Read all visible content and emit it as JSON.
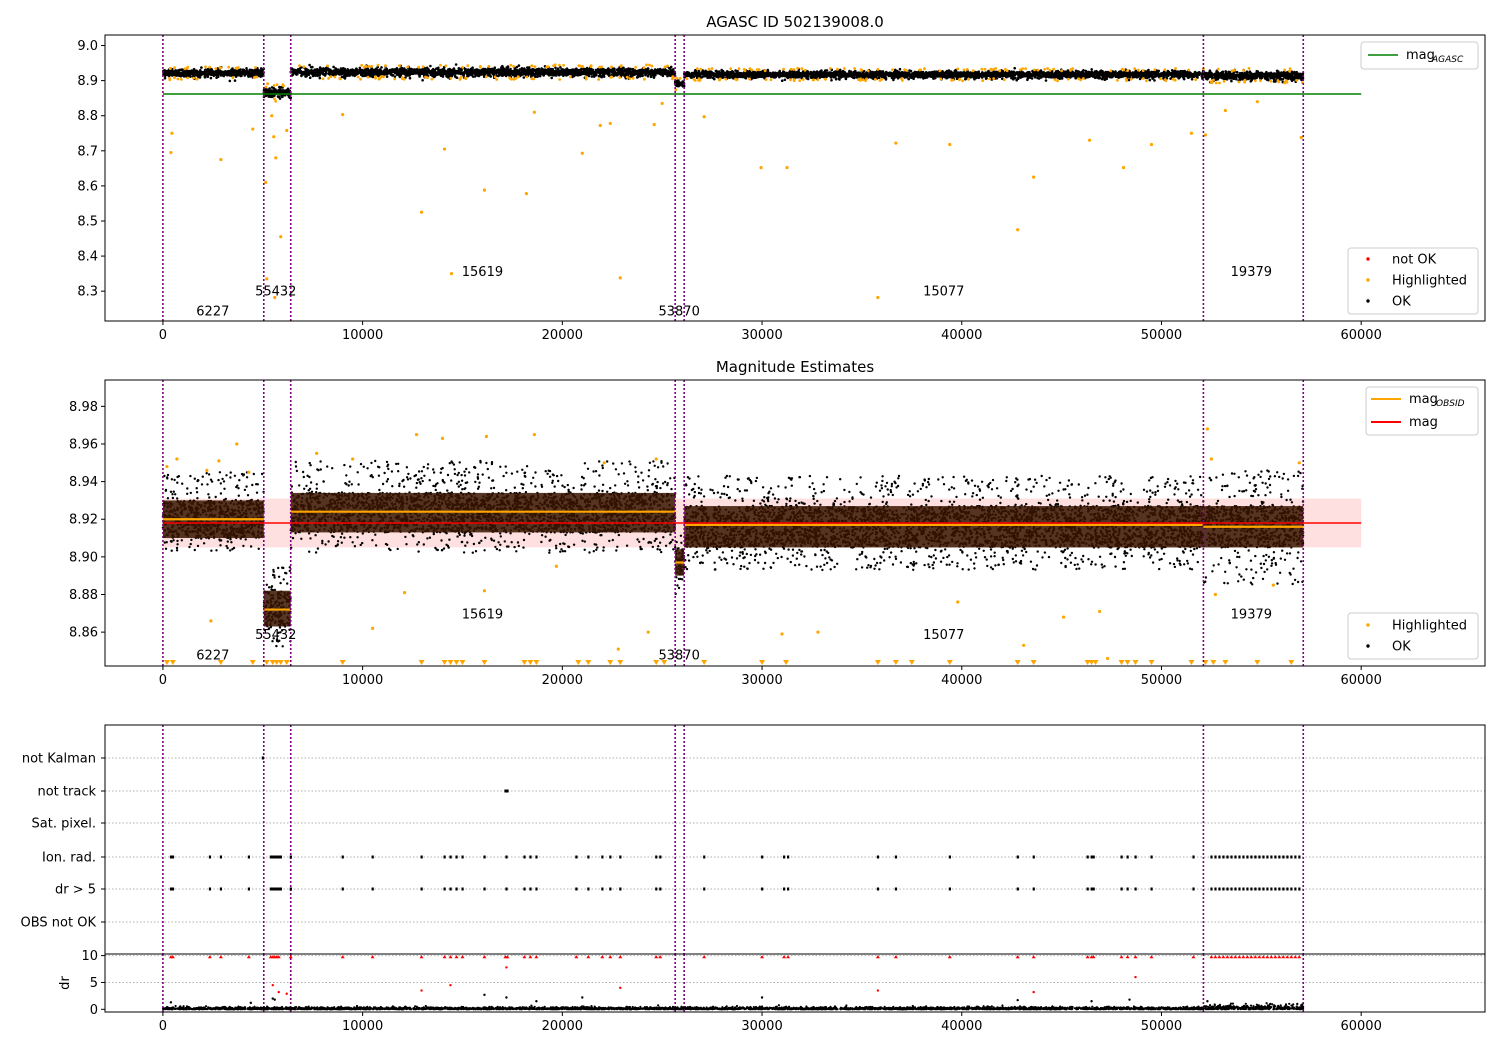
{
  "chart_data": [
    {
      "type": "scatter",
      "title": "AGASC ID 502139008.0",
      "xlim": [
        -2900,
        66200
      ],
      "ylim": [
        8.215,
        9.03
      ],
      "xticks": [
        0,
        10000,
        20000,
        30000,
        40000,
        50000,
        60000
      ],
      "xtick_labels": [
        "0",
        "10000",
        "20000",
        "30000",
        "40000",
        "50000",
        "60000"
      ],
      "yticks": [
        8.3,
        8.4,
        8.5,
        8.6,
        8.7,
        8.8,
        8.9,
        9.0
      ],
      "ytick_labels": [
        "8.3",
        "8.4",
        "8.5",
        "8.6",
        "8.7",
        "8.8",
        "8.9",
        "9.0"
      ],
      "legend_upper": [
        {
          "label": "mag",
          "sub": "AGASC",
          "color": "#008000",
          "kind": "line"
        }
      ],
      "legend_lower": [
        {
          "label": "not OK",
          "color": "#ff0000",
          "kind": "dot"
        },
        {
          "label": "Highlighted",
          "color": "#ffa500",
          "kind": "dot"
        },
        {
          "label": "OK",
          "color": "#000000",
          "kind": "dot"
        }
      ],
      "legend_placement": [
        "upper right",
        "lower right"
      ],
      "hline": {
        "y": 8.862,
        "x": [
          0,
          60000
        ],
        "color": "#008000"
      },
      "obsid_boundaries": [
        0,
        5050,
        6400,
        25650,
        26100,
        52100,
        57100
      ],
      "obsid_labels": [
        {
          "text": "6227",
          "x": 2500,
          "y": 8.245
        },
        {
          "text": "55432",
          "x": 5650,
          "y": 8.302
        },
        {
          "text": "15619",
          "x": 16000,
          "y": 8.358
        },
        {
          "text": "53870",
          "x": 25850,
          "y": 8.245
        },
        {
          "text": "15077",
          "x": 39100,
          "y": 8.302
        },
        {
          "text": "19379",
          "x": 54500,
          "y": 8.358
        }
      ],
      "bands": [
        {
          "x": [
            0,
            5050
          ],
          "center": 8.922,
          "spread": 0.013
        },
        {
          "x": [
            5050,
            6400
          ],
          "center": 8.866,
          "spread": 0.017
        },
        {
          "x": [
            6400,
            25650
          ],
          "center": 8.924,
          "spread": 0.014
        },
        {
          "x": [
            25650,
            26100
          ],
          "center": 8.892,
          "spread": 0.012
        },
        {
          "x": [
            26100,
            52100
          ],
          "center": 8.917,
          "spread": 0.012
        },
        {
          "x": [
            52100,
            57100
          ],
          "center": 8.914,
          "spread": 0.014
        }
      ],
      "highlighted_points": [
        [
          450,
          8.75
        ],
        [
          400,
          8.695
        ],
        [
          2900,
          8.675
        ],
        [
          4500,
          8.762
        ],
        [
          5150,
          8.61
        ],
        [
          5200,
          8.335
        ],
        [
          5450,
          8.8
        ],
        [
          5550,
          8.74
        ],
        [
          5650,
          8.68
        ],
        [
          5600,
          8.282
        ],
        [
          5900,
          8.455
        ],
        [
          6200,
          8.758
        ],
        [
          9000,
          8.803
        ],
        [
          12950,
          8.525
        ],
        [
          14100,
          8.705
        ],
        [
          14450,
          8.35
        ],
        [
          16100,
          8.588
        ],
        [
          18200,
          8.578
        ],
        [
          18600,
          8.81
        ],
        [
          21000,
          8.693
        ],
        [
          21900,
          8.772
        ],
        [
          22400,
          8.778
        ],
        [
          22900,
          8.338
        ],
        [
          24600,
          8.775
        ],
        [
          25000,
          8.835
        ],
        [
          27100,
          8.797
        ],
        [
          29950,
          8.652
        ],
        [
          31250,
          8.652
        ],
        [
          35800,
          8.282
        ],
        [
          36700,
          8.722
        ],
        [
          39400,
          8.718
        ],
        [
          42800,
          8.475
        ],
        [
          43600,
          8.625
        ],
        [
          46400,
          8.73
        ],
        [
          48100,
          8.652
        ],
        [
          49500,
          8.718
        ],
        [
          51500,
          8.75
        ],
        [
          52200,
          8.745
        ],
        [
          53200,
          8.815
        ],
        [
          54800,
          8.84
        ],
        [
          57000,
          8.738
        ]
      ]
    },
    {
      "type": "scatter",
      "title": "Magnitude Estimates",
      "xlim": [
        -2900,
        66200
      ],
      "ylim": [
        8.842,
        8.994
      ],
      "xticks": [
        0,
        10000,
        20000,
        30000,
        40000,
        50000,
        60000
      ],
      "xtick_labels": [
        "0",
        "10000",
        "20000",
        "30000",
        "40000",
        "50000",
        "60000"
      ],
      "yticks": [
        8.86,
        8.88,
        8.9,
        8.92,
        8.94,
        8.96,
        8.98
      ],
      "ytick_labels": [
        "8.86",
        "8.88",
        "8.90",
        "8.92",
        "8.94",
        "8.96",
        "8.98"
      ],
      "legend_upper": [
        {
          "label": "mag",
          "sub": "OBSID",
          "color": "#ffa500",
          "kind": "line"
        },
        {
          "label": "mag",
          "sub": "",
          "color": "#ff0000",
          "kind": "line"
        }
      ],
      "legend_lower": [
        {
          "label": "Highlighted",
          "color": "#ffa500",
          "kind": "dot"
        },
        {
          "label": "OK",
          "color": "#000000",
          "kind": "dot"
        }
      ],
      "legend_placement": [
        "upper right",
        "lower right"
      ],
      "mag": {
        "y": 8.918,
        "band": [
          8.905,
          8.931
        ],
        "x": [
          0,
          60000
        ],
        "color": "#ff0000"
      },
      "obsid_boundaries": [
        0,
        5050,
        6400,
        25650,
        26100,
        52100,
        57100
      ],
      "obsid_labels": [
        {
          "text": "6227",
          "x": 2500,
          "y": 8.848
        },
        {
          "text": "55432",
          "x": 5650,
          "y": 8.859
        },
        {
          "text": "15619",
          "x": 16000,
          "y": 8.87
        },
        {
          "text": "53870",
          "x": 25850,
          "y": 8.848
        },
        {
          "text": "15077",
          "x": 39100,
          "y": 8.859
        },
        {
          "text": "19379",
          "x": 54500,
          "y": 8.87
        }
      ],
      "bands": [
        {
          "x": [
            0,
            5050
          ],
          "mag_obsid": 8.92,
          "inner": [
            8.91,
            8.93
          ],
          "outer": [
            8.903,
            8.945
          ]
        },
        {
          "x": [
            5050,
            6400
          ],
          "mag_obsid": 8.872,
          "inner": [
            8.863,
            8.882
          ],
          "outer": [
            8.852,
            8.895
          ]
        },
        {
          "x": [
            6400,
            25650
          ],
          "mag_obsid": 8.924,
          "inner": [
            8.913,
            8.934
          ],
          "outer": [
            8.902,
            8.951
          ]
        },
        {
          "x": [
            25650,
            26100
          ],
          "mag_obsid": 8.897,
          "inner": [
            8.89,
            8.904
          ],
          "outer": [
            8.878,
            8.913
          ]
        },
        {
          "x": [
            26100,
            52100
          ],
          "mag_obsid": 8.917,
          "inner": [
            8.905,
            8.927
          ],
          "outer": [
            8.893,
            8.943
          ]
        },
        {
          "x": [
            52100,
            57100
          ],
          "mag_obsid": 8.916,
          "inner": [
            8.905,
            8.927
          ],
          "outer": [
            8.885,
            8.946
          ]
        }
      ],
      "highlighted_points": [
        [
          200,
          8.948
        ],
        [
          700,
          8.952
        ],
        [
          2200,
          8.946
        ],
        [
          2800,
          8.951
        ],
        [
          3700,
          8.96
        ],
        [
          4300,
          8.945
        ],
        [
          7700,
          8.955
        ],
        [
          9500,
          8.952
        ],
        [
          12700,
          8.965
        ],
        [
          14000,
          8.963
        ],
        [
          16200,
          8.964
        ],
        [
          18600,
          8.965
        ],
        [
          22100,
          8.95
        ],
        [
          24700,
          8.952
        ],
        [
          10500,
          8.862
        ],
        [
          12100,
          8.881
        ],
        [
          16100,
          8.882
        ],
        [
          19700,
          8.895
        ],
        [
          22800,
          8.851
        ],
        [
          24300,
          8.86
        ],
        [
          2400,
          8.866
        ],
        [
          31000,
          8.859
        ],
        [
          32800,
          8.86
        ],
        [
          39800,
          8.876
        ],
        [
          43100,
          8.853
        ],
        [
          45100,
          8.868
        ],
        [
          46900,
          8.871
        ],
        [
          47300,
          8.846
        ],
        [
          52300,
          8.968
        ],
        [
          52500,
          8.952
        ],
        [
          56900,
          8.95
        ],
        [
          52700,
          8.88
        ],
        [
          55600,
          8.885
        ]
      ],
      "floor_markers": [
        200,
        500,
        2900,
        4500,
        5200,
        5500,
        5700,
        5900,
        6200,
        9000,
        12950,
        14100,
        14400,
        14700,
        15000,
        16100,
        18100,
        18400,
        18700,
        20800,
        21300,
        22400,
        22900,
        24700,
        25100,
        27100,
        30000,
        31200,
        35800,
        36700,
        37500,
        39400,
        42800,
        43600,
        46300,
        46500,
        46700,
        48000,
        48300,
        48700,
        49500,
        51500,
        52200,
        52600,
        53200,
        54800,
        56500
      ]
    },
    {
      "type": "event-strip",
      "xlim": [
        -2900,
        66200
      ],
      "xticks": [
        0,
        10000,
        20000,
        30000,
        40000,
        50000,
        60000
      ],
      "xtick_labels": [
        "0",
        "10000",
        "20000",
        "30000",
        "40000",
        "50000",
        "60000"
      ],
      "rows": [
        "not Kalman",
        "not track",
        "Sat. pixel.",
        "Ion. rad.",
        "dr > 5",
        "OBS not OK"
      ],
      "obsid_boundaries": [
        0,
        5050,
        6400,
        25650,
        26100,
        52100,
        57100
      ],
      "events": {
        "not Kalman": [
          5000
        ],
        "not track": [
          17150,
          17250
        ],
        "Ion. rad.": [
          400,
          500,
          2350,
          2900,
          4300,
          5400,
          5500,
          5600,
          5700,
          5800,
          5900,
          6400,
          9000,
          10500,
          12950,
          14100,
          14400,
          14700,
          15000,
          16100,
          17200,
          18100,
          18400,
          18700,
          20700,
          21300,
          22000,
          22400,
          22900,
          24700,
          24900,
          27100,
          30000,
          31100,
          31300,
          35800,
          36700,
          39400,
          42800,
          43600,
          46300,
          46500,
          46600,
          48000,
          48300,
          48700,
          49500,
          51600,
          52500,
          52700,
          52900,
          53100,
          53300,
          53500,
          53700,
          53900,
          54100,
          54300,
          54500,
          54700,
          54900,
          55100,
          55300,
          55500,
          55700,
          55900,
          56100,
          56300,
          56500,
          56700,
          56900
        ],
        "dr > 5": [
          400,
          500,
          2350,
          2900,
          4300,
          5400,
          5500,
          5600,
          5700,
          5800,
          5900,
          6400,
          9000,
          10500,
          12950,
          14100,
          14400,
          14700,
          15000,
          16100,
          17200,
          18100,
          18400,
          18700,
          20700,
          21300,
          22000,
          22400,
          22900,
          24700,
          24900,
          27100,
          30000,
          31100,
          31300,
          35800,
          36700,
          39400,
          42800,
          43600,
          46300,
          46500,
          46600,
          48000,
          48300,
          48700,
          49500,
          51600,
          52500,
          52700,
          52900,
          53100,
          53300,
          53500,
          53700,
          53900,
          54100,
          54300,
          54500,
          54700,
          54900,
          55100,
          55300,
          55500,
          55700,
          55900,
          56100,
          56300,
          56500,
          56700,
          56900
        ]
      }
    },
    {
      "type": "scatter",
      "ylabel": "dr",
      "xlim": [
        -2900,
        66200
      ],
      "ylim": [
        -0.5,
        10.3
      ],
      "xticks": [
        0,
        10000,
        20000,
        30000,
        40000,
        50000,
        60000
      ],
      "xtick_labels": [
        "0",
        "10000",
        "20000",
        "30000",
        "40000",
        "50000",
        "60000"
      ],
      "yticks": [
        0,
        5,
        10
      ],
      "ytick_labels": [
        "0",
        "5",
        "10"
      ],
      "obsid_boundaries": [
        0,
        5050,
        6400,
        25650,
        26100,
        52100,
        57100
      ],
      "capped_red": [
        400,
        500,
        2350,
        2900,
        4300,
        5400,
        5500,
        5600,
        5700,
        5800,
        6400,
        9000,
        10500,
        12950,
        14100,
        14400,
        14700,
        15000,
        16100,
        17150,
        17250,
        18100,
        18400,
        18700,
        20700,
        21300,
        22000,
        22400,
        22900,
        24700,
        24900,
        27100,
        30000,
        31100,
        31300,
        35800,
        36700,
        39400,
        42800,
        43600,
        46300,
        46500,
        46600,
        48000,
        48300,
        48700,
        49500,
        51600,
        52500,
        52700,
        52900,
        53100,
        53300,
        53500,
        53700,
        53900,
        54100,
        54300,
        54500,
        54700,
        54900,
        55100,
        55300,
        55500,
        55700,
        55900,
        56100,
        56300,
        56500,
        56700,
        56900
      ],
      "red_points": [
        [
          5500,
          4.5
        ],
        [
          5800,
          3.2
        ],
        [
          12950,
          3.5
        ],
        [
          14400,
          4.5
        ],
        [
          17200,
          7.8
        ],
        [
          22900,
          4.0
        ],
        [
          35800,
          3.5
        ],
        [
          43600,
          3.2
        ],
        [
          48700,
          6.0
        ],
        [
          6200,
          2.9
        ]
      ],
      "black_points": [
        [
          400,
          1.3
        ],
        [
          4400,
          1.2
        ],
        [
          5500,
          2.0
        ],
        [
          5600,
          1.8
        ],
        [
          16100,
          2.7
        ],
        [
          17200,
          2.2
        ],
        [
          18700,
          1.5
        ],
        [
          21000,
          2.2
        ],
        [
          30000,
          2.2
        ],
        [
          42800,
          1.7
        ],
        [
          46500,
          1.5
        ],
        [
          48400,
          1.8
        ],
        [
          52300,
          1.5
        ],
        [
          56800,
          1.0
        ]
      ]
    }
  ]
}
